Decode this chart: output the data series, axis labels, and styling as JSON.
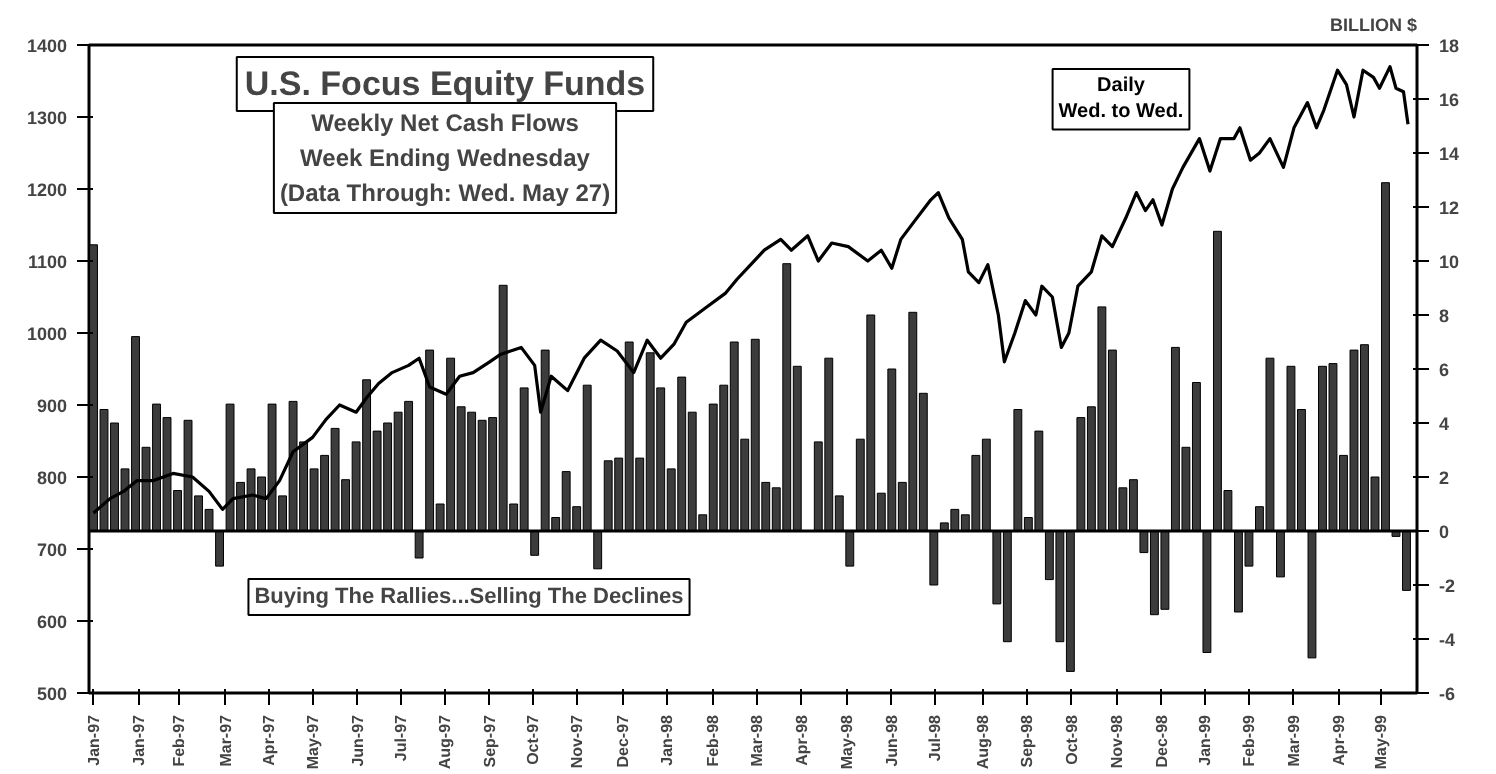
{
  "chart_data": {
    "type": "bar",
    "title": "U.S. Focus Equity Funds",
    "subtitle": "Weekly Net Cash Flows\nWeek Ending Wednesday\n(Data Through: Wed. May 27)",
    "y2label": "BILLION $",
    "annotations": [
      "Buying The Rallies...Selling The Declines"
    ],
    "xlim": [
      "1996-12-29",
      "1999-06-02"
    ],
    "xticks": [
      {
        "value": "1997-01-01",
        "label": "Jan-97"
      },
      {
        "value": "1997-01-31",
        "label": "Jan-97"
      },
      {
        "value": "1997-02-27",
        "label": "Feb-97"
      },
      {
        "value": "1997-03-30",
        "label": "Mar-97"
      },
      {
        "value": "1997-04-28",
        "label": "Apr-97"
      },
      {
        "value": "1997-05-27",
        "label": "May-97"
      },
      {
        "value": "1997-06-26",
        "label": "Jun-97"
      },
      {
        "value": "1997-07-25",
        "label": "Jul-97"
      },
      {
        "value": "1997-08-23",
        "label": "Aug-97"
      },
      {
        "value": "1997-09-22",
        "label": "Sep-97"
      },
      {
        "value": "1997-10-21",
        "label": "Oct-97"
      },
      {
        "value": "1997-11-19",
        "label": "Nov-97"
      },
      {
        "value": "1997-12-20",
        "label": "Dec-97"
      },
      {
        "value": "1998-01-18",
        "label": "Jan-98"
      },
      {
        "value": "1998-02-18",
        "label": "Feb-98"
      },
      {
        "value": "1998-03-19",
        "label": "Mar-98"
      },
      {
        "value": "1998-04-18",
        "label": "Apr-98"
      },
      {
        "value": "1998-05-18",
        "label": "May-98"
      },
      {
        "value": "1998-06-17",
        "label": "Jun-98"
      },
      {
        "value": "1998-07-16",
        "label": "Jul-98"
      },
      {
        "value": "1998-08-17",
        "label": "Aug-98"
      },
      {
        "value": "1998-09-15",
        "label": "Sep-98"
      },
      {
        "value": "1998-10-15",
        "label": "Oct-98"
      },
      {
        "value": "1998-11-14",
        "label": "Nov-98"
      },
      {
        "value": "1998-12-14",
        "label": "Dec-98"
      },
      {
        "value": "1999-01-12",
        "label": "Jan-99"
      },
      {
        "value": "1999-02-10",
        "label": "Feb-99"
      },
      {
        "value": "1999-03-12",
        "label": "Mar-99"
      },
      {
        "value": "1999-04-11",
        "label": "Apr-99"
      },
      {
        "value": "1999-05-09",
        "label": "May-99"
      }
    ],
    "ylim": [
      500,
      1400
    ],
    "yticks": [
      500,
      600,
      700,
      800,
      900,
      1000,
      1100,
      1200,
      1300,
      1400
    ],
    "y2lim": [
      -6,
      18
    ],
    "y2ticks": [
      -6,
      -4,
      -2,
      0,
      2,
      4,
      6,
      8,
      10,
      12,
      14,
      16,
      18
    ],
    "ref_lines": [
      {
        "axis": "y2",
        "value": 0,
        "color": "#000000"
      }
    ],
    "grid": false,
    "legend": false,
    "series": [
      {
        "axis": "y2",
        "color": "#3c3c3c",
        "x": [
          "1997-01-01",
          "1997-01-08",
          "1997-01-15",
          "1997-01-22",
          "1997-01-29",
          "1997-02-05",
          "1997-02-12",
          "1997-02-19",
          "1997-02-26",
          "1997-03-05",
          "1997-03-12",
          "1997-03-19",
          "1997-03-26",
          "1997-04-02",
          "1997-04-09",
          "1997-04-16",
          "1997-04-23",
          "1997-04-30",
          "1997-05-07",
          "1997-05-14",
          "1997-05-21",
          "1997-05-28",
          "1997-06-04",
          "1997-06-11",
          "1997-06-18",
          "1997-06-25",
          "1997-07-02",
          "1997-07-09",
          "1997-07-16",
          "1997-07-23",
          "1997-07-30",
          "1997-08-06",
          "1997-08-13",
          "1997-08-20",
          "1997-08-27",
          "1997-09-03",
          "1997-09-10",
          "1997-09-17",
          "1997-09-24",
          "1997-10-01",
          "1997-10-08",
          "1997-10-15",
          "1997-10-22",
          "1997-10-29",
          "1997-11-05",
          "1997-11-12",
          "1997-11-19",
          "1997-11-26",
          "1997-12-03",
          "1997-12-10",
          "1997-12-17",
          "1997-12-24",
          "1997-12-31",
          "1998-01-07",
          "1998-01-14",
          "1998-01-21",
          "1998-01-28",
          "1998-02-04",
          "1998-02-11",
          "1998-02-18",
          "1998-02-25",
          "1998-03-04",
          "1998-03-11",
          "1998-03-18",
          "1998-03-25",
          "1998-04-01",
          "1998-04-08",
          "1998-04-15",
          "1998-04-22",
          "1998-04-29",
          "1998-05-06",
          "1998-05-13",
          "1998-05-20",
          "1998-05-27",
          "1998-06-03",
          "1998-06-10",
          "1998-06-17",
          "1998-06-24",
          "1998-07-01",
          "1998-07-08",
          "1998-07-15",
          "1998-07-22",
          "1998-07-29",
          "1998-08-05",
          "1998-08-12",
          "1998-08-19",
          "1998-08-26",
          "1998-09-02",
          "1998-09-09",
          "1998-09-16",
          "1998-09-23",
          "1998-09-30",
          "1998-10-07",
          "1998-10-14",
          "1998-10-21",
          "1998-10-28",
          "1998-11-04",
          "1998-11-11",
          "1998-11-18",
          "1998-11-25",
          "1998-12-02",
          "1998-12-09",
          "1998-12-16",
          "1998-12-23",
          "1998-12-30",
          "1999-01-06",
          "1999-01-13",
          "1999-01-20",
          "1999-01-27",
          "1999-02-03",
          "1999-02-10",
          "1999-02-17",
          "1999-02-24",
          "1999-03-03",
          "1999-03-10",
          "1999-03-17",
          "1999-03-24",
          "1999-03-31",
          "1999-04-07",
          "1999-04-14",
          "1999-04-21",
          "1999-04-28",
          "1999-05-05",
          "1999-05-12",
          "1999-05-19",
          "1999-05-26"
        ],
        "values": [
          10.6,
          4.5,
          4.0,
          2.3,
          7.2,
          3.1,
          4.7,
          4.2,
          1.5,
          4.1,
          1.3,
          0.8,
          -1.3,
          4.7,
          1.8,
          2.3,
          2.0,
          4.7,
          1.3,
          4.8,
          3.3,
          2.3,
          2.8,
          3.8,
          1.9,
          3.3,
          5.6,
          3.7,
          4.0,
          4.4,
          4.8,
          -1.0,
          6.7,
          1.0,
          6.4,
          4.6,
          4.4,
          4.1,
          4.2,
          9.1,
          1.0,
          5.3,
          -0.9,
          6.7,
          0.5,
          2.2,
          0.9,
          5.4,
          -1.4,
          2.6,
          2.7,
          7.0,
          2.7,
          6.6,
          5.3,
          2.3,
          5.7,
          4.4,
          0.6,
          4.7,
          5.4,
          7.0,
          3.4,
          7.1,
          1.8,
          1.6,
          9.9,
          6.1,
          null,
          3.3,
          6.4,
          1.3,
          -1.3,
          3.4,
          8.0,
          1.4,
          6.0,
          1.8,
          8.1,
          5.1,
          -2.0,
          0.3,
          0.8,
          0.6,
          2.8,
          3.4,
          -2.7,
          -4.1,
          4.5,
          0.5,
          3.7,
          -1.8,
          -4.1,
          -5.2,
          4.2,
          4.6,
          8.3,
          6.7,
          1.6,
          1.9,
          -0.8,
          -3.1,
          -2.9,
          6.8,
          3.1,
          5.5,
          -4.5,
          11.1,
          1.5,
          -3.0,
          -1.3,
          0.9,
          6.4,
          -1.7,
          6.1,
          4.5,
          -4.7,
          6.1,
          6.2,
          2.8,
          6.7,
          6.9,
          2.0,
          12.9,
          -0.2,
          -2.2
        ]
      },
      {
        "type": "line",
        "axis": "y",
        "color": "#000000",
        "name": "Daily\nWed. to Wed.",
        "x": [
          "1997-01-01",
          "1997-01-12",
          "1997-01-21",
          "1997-01-30",
          "1997-02-10",
          "1997-02-23",
          "1997-03-08",
          "1997-03-19",
          "1997-03-28",
          "1997-04-04",
          "1997-04-17",
          "1997-04-26",
          "1997-05-05",
          "1997-05-14",
          "1997-05-27",
          "1997-06-05",
          "1997-06-14",
          "1997-06-25",
          "1997-07-02",
          "1997-07-10",
          "1997-07-19",
          "1997-07-30",
          "1997-08-06",
          "1997-08-13",
          "1997-08-24",
          "1997-09-02",
          "1997-09-11",
          "1997-09-22",
          "1997-09-29",
          "1997-10-13",
          "1997-10-22",
          "1997-10-26",
          "1997-11-02",
          "1997-11-13",
          "1997-11-24",
          "1997-12-05",
          "1997-12-16",
          "1997-12-27",
          "1998-01-05",
          "1998-01-14",
          "1998-01-23",
          "1998-01-31",
          "1998-02-13",
          "1998-02-26",
          "1998-03-06",
          "1998-03-15",
          "1998-03-24",
          "1998-04-04",
          "1998-04-11",
          "1998-04-22",
          "1998-04-29",
          "1998-05-08",
          "1998-05-19",
          "1998-06-01",
          "1998-06-10",
          "1998-06-17",
          "1998-06-23",
          "1998-07-02",
          "1998-07-13",
          "1998-07-18",
          "1998-07-25",
          "1998-08-03",
          "1998-08-07",
          "1998-08-14",
          "1998-08-20",
          "1998-08-27",
          "1998-08-31",
          "1998-09-07",
          "1998-09-14",
          "1998-09-21",
          "1998-09-25",
          "1998-10-02",
          "1998-10-08",
          "1998-10-13",
          "1998-10-19",
          "1998-10-28",
          "1998-11-04",
          "1998-11-11",
          "1998-11-20",
          "1998-11-27",
          "1998-12-03",
          "1998-12-08",
          "1998-12-14",
          "1998-12-21",
          "1998-12-28",
          "1999-01-08",
          "1999-01-15",
          "1999-01-22",
          "1999-01-31",
          "1999-02-04",
          "1999-02-11",
          "1999-02-17",
          "1999-02-24",
          "1999-03-05",
          "1999-03-12",
          "1999-03-21",
          "1999-03-27",
          "1999-04-01",
          "1999-04-10",
          "1999-04-16",
          "1999-04-21",
          "1999-04-27",
          "1999-05-04",
          "1999-05-08",
          "1999-05-15",
          "1999-05-19",
          "1999-05-24",
          "1999-05-27"
        ],
        "values": [
          750,
          770,
          780,
          795,
          795,
          805,
          800,
          780,
          755,
          770,
          775,
          770,
          795,
          835,
          855,
          880,
          900,
          890,
          910,
          930,
          945,
          955,
          965,
          925,
          915,
          940,
          945,
          960,
          970,
          980,
          955,
          890,
          940,
          920,
          965,
          990,
          975,
          945,
          990,
          965,
          985,
          1015,
          1035,
          1055,
          1075,
          1095,
          1115,
          1130,
          1115,
          1135,
          1100,
          1125,
          1120,
          1100,
          1115,
          1090,
          1130,
          1155,
          1185,
          1195,
          1160,
          1130,
          1085,
          1070,
          1095,
          1025,
          960,
          1000,
          1045,
          1025,
          1065,
          1050,
          980,
          1000,
          1065,
          1085,
          1135,
          1120,
          1160,
          1195,
          1170,
          1185,
          1150,
          1200,
          1230,
          1270,
          1225,
          1270,
          1270,
          1285,
          1240,
          1250,
          1270,
          1230,
          1285,
          1320,
          1285,
          1310,
          1365,
          1345,
          1300,
          1365,
          1355,
          1340,
          1370,
          1340,
          1335,
          1290
        ]
      }
    ]
  }
}
